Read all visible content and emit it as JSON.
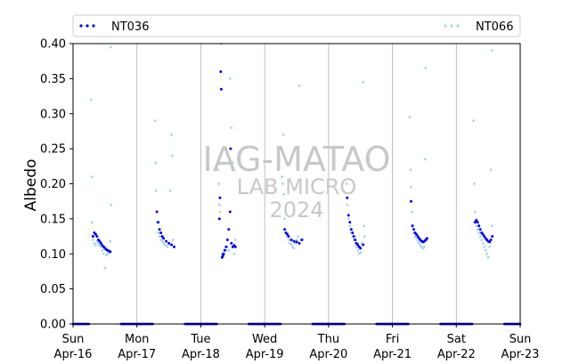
{
  "chart_data": {
    "type": "scatter",
    "xlabel": "",
    "ylabel": "Albedo",
    "ylim": [
      0,
      0.4
    ],
    "yticks": [
      "0.00",
      "0.05",
      "0.10",
      "0.15",
      "0.20",
      "0.25",
      "0.30",
      "0.35",
      "0.40"
    ],
    "xlim": [
      "2024-04-16",
      "2024-04-23"
    ],
    "xticks": [
      {
        "day": "Sun",
        "date": "Apr-16"
      },
      {
        "day": "Mon",
        "date": "Apr-17"
      },
      {
        "day": "Tue",
        "date": "Apr-18"
      },
      {
        "day": "Wed",
        "date": "Apr-19"
      },
      {
        "day": "Thu",
        "date": "Apr-20"
      },
      {
        "day": "Fri",
        "date": "Apr-21"
      },
      {
        "day": "Sat",
        "date": "Apr-22"
      },
      {
        "day": "Sun",
        "date": "Apr-23"
      }
    ],
    "day_gridlines": true,
    "legend_position": "top, spanning full width",
    "watermark": {
      "line1": "IAG-MATAO",
      "line2": "LAB MICRO",
      "line3": "2024"
    },
    "series": [
      {
        "name": "NT036",
        "color": "#0000ee",
        "marker": "dot",
        "daily_profiles": [
          {
            "date": "2024-04-16",
            "points": [
              [
                7.5,
                0.125
              ],
              [
                8.0,
                0.13
              ],
              [
                8.5,
                0.128
              ],
              [
                9.0,
                0.125
              ],
              [
                9.5,
                0.12
              ],
              [
                10.0,
                0.118
              ],
              [
                10.5,
                0.115
              ],
              [
                11.0,
                0.112
              ],
              [
                11.5,
                0.11
              ],
              [
                12.0,
                0.108
              ],
              [
                12.5,
                0.106
              ],
              [
                13.0,
                0.105
              ],
              [
                13.5,
                0.104
              ],
              [
                14.0,
                0.103
              ]
            ]
          },
          {
            "date": "2024-04-17",
            "points": [
              [
                7.5,
                0.16
              ],
              [
                8.0,
                0.145
              ],
              [
                8.5,
                0.135
              ],
              [
                9.0,
                0.13
              ],
              [
                9.5,
                0.125
              ],
              [
                10.0,
                0.122
              ],
              [
                11.0,
                0.118
              ],
              [
                12.0,
                0.115
              ],
              [
                13.0,
                0.113
              ],
              [
                14.0,
                0.11
              ]
            ]
          },
          {
            "date": "2024-04-18",
            "points": [
              [
                7.0,
                0.15
              ],
              [
                7.2,
                0.18
              ],
              [
                7.5,
                0.36
              ],
              [
                7.7,
                0.335
              ],
              [
                8.0,
                0.095
              ],
              [
                8.3,
                0.097
              ],
              [
                8.5,
                0.1
              ],
              [
                9.0,
                0.105
              ],
              [
                9.5,
                0.11
              ],
              [
                10.0,
                0.12
              ],
              [
                10.5,
                0.135
              ],
              [
                11.0,
                0.16
              ],
              [
                11.2,
                0.25
              ],
              [
                11.5,
                0.115
              ],
              [
                12.0,
                0.11
              ],
              [
                12.5,
                0.112
              ],
              [
                13.0,
                0.11
              ]
            ]
          },
          {
            "date": "2024-04-19",
            "points": [
              [
                7.5,
                0.135
              ],
              [
                8.0,
                0.13
              ],
              [
                8.5,
                0.128
              ],
              [
                9.0,
                0.125
              ],
              [
                10.0,
                0.12
              ],
              [
                11.0,
                0.118
              ],
              [
                12.0,
                0.117
              ],
              [
                13.0,
                0.115
              ],
              [
                14.0,
                0.12
              ]
            ]
          },
          {
            "date": "2024-04-20",
            "points": [
              [
                7.0,
                0.18
              ],
              [
                7.5,
                0.155
              ],
              [
                8.0,
                0.145
              ],
              [
                8.5,
                0.135
              ],
              [
                9.0,
                0.13
              ],
              [
                9.5,
                0.125
              ],
              [
                10.0,
                0.12
              ],
              [
                10.5,
                0.115
              ],
              [
                11.0,
                0.113
              ],
              [
                11.5,
                0.11
              ],
              [
                12.0,
                0.108
              ],
              [
                13.0,
                0.113
              ]
            ]
          },
          {
            "date": "2024-04-21",
            "points": [
              [
                7.0,
                0.175
              ],
              [
                7.5,
                0.14
              ],
              [
                8.0,
                0.135
              ],
              [
                8.5,
                0.13
              ],
              [
                9.0,
                0.128
              ],
              [
                9.5,
                0.125
              ],
              [
                10.0,
                0.122
              ],
              [
                10.5,
                0.12
              ],
              [
                11.0,
                0.118
              ],
              [
                11.5,
                0.117
              ],
              [
                12.0,
                0.118
              ],
              [
                12.5,
                0.12
              ],
              [
                13.0,
                0.122
              ]
            ]
          },
          {
            "date": "2024-04-22",
            "points": [
              [
                7.0,
                0.145
              ],
              [
                7.5,
                0.148
              ],
              [
                8.0,
                0.145
              ],
              [
                8.5,
                0.14
              ],
              [
                9.0,
                0.135
              ],
              [
                9.5,
                0.13
              ],
              [
                10.0,
                0.128
              ],
              [
                10.5,
                0.125
              ],
              [
                11.0,
                0.122
              ],
              [
                11.5,
                0.12
              ],
              [
                12.0,
                0.118
              ],
              [
                12.5,
                0.117
              ],
              [
                13.0,
                0.12
              ],
              [
                13.5,
                0.125
              ]
            ]
          }
        ]
      },
      {
        "name": "NT066",
        "color": "#a6d8ea",
        "marker": "dot",
        "daily_profiles": [
          {
            "date": "2024-04-16",
            "points": [
              [
                6.8,
                0.32
              ],
              [
                7.0,
                0.21
              ],
              [
                7.2,
                0.145
              ],
              [
                7.5,
                0.12
              ],
              [
                8.0,
                0.115
              ],
              [
                8.5,
                0.112
              ],
              [
                9.0,
                0.118
              ],
              [
                9.5,
                0.115
              ],
              [
                10.0,
                0.112
              ],
              [
                10.5,
                0.11
              ],
              [
                11.0,
                0.105
              ],
              [
                11.5,
                0.1
              ],
              [
                12.0,
                0.08
              ],
              [
                12.5,
                0.098
              ],
              [
                13.0,
                0.1
              ],
              [
                13.5,
                0.102
              ],
              [
                14.0,
                0.118
              ],
              [
                14.2,
                0.395
              ],
              [
                14.3,
                0.17
              ]
            ]
          },
          {
            "date": "2024-04-17",
            "points": [
              [
                6.8,
                0.29
              ],
              [
                7.0,
                0.23
              ],
              [
                7.2,
                0.19
              ],
              [
                7.5,
                0.145
              ],
              [
                8.0,
                0.13
              ],
              [
                8.5,
                0.125
              ],
              [
                9.0,
                0.12
              ],
              [
                9.5,
                0.118
              ],
              [
                10.0,
                0.115
              ],
              [
                10.5,
                0.113
              ],
              [
                11.0,
                0.112
              ],
              [
                11.5,
                0.11
              ],
              [
                12.0,
                0.115
              ],
              [
                12.5,
                0.19
              ],
              [
                13.0,
                0.27
              ],
              [
                13.3,
                0.24
              ],
              [
                13.5,
                0.12
              ]
            ]
          },
          {
            "date": "2024-04-18",
            "points": [
              [
                6.5,
                0.22
              ],
              [
                6.8,
                0.2
              ],
              [
                7.0,
                0.17
              ],
              [
                7.3,
                0.16
              ],
              [
                7.6,
                0.4
              ],
              [
                8.0,
                0.1
              ],
              [
                8.5,
                0.098
              ],
              [
                9.0,
                0.1
              ],
              [
                9.5,
                0.105
              ],
              [
                10.0,
                0.11
              ],
              [
                10.5,
                0.105
              ],
              [
                11.0,
                0.35
              ],
              [
                11.5,
                0.28
              ],
              [
                12.0,
                0.23
              ],
              [
                12.5,
                0.1
              ],
              [
                13.0,
                0.12
              ]
            ]
          },
          {
            "date": "2024-04-19",
            "points": [
              [
                6.5,
                0.21
              ],
              [
                6.8,
                0.2
              ],
              [
                7.0,
                0.27
              ],
              [
                7.2,
                0.185
              ],
              [
                7.5,
                0.15
              ],
              [
                8.0,
                0.13
              ],
              [
                8.5,
                0.125
              ],
              [
                9.0,
                0.12
              ],
              [
                9.5,
                0.115
              ],
              [
                10.0,
                0.113
              ],
              [
                10.5,
                0.11
              ],
              [
                11.0,
                0.108
              ],
              [
                11.5,
                0.115
              ],
              [
                12.0,
                0.12
              ],
              [
                12.5,
                0.125
              ],
              [
                13.0,
                0.34
              ],
              [
                13.5,
                0.12
              ]
            ]
          },
          {
            "date": "2024-04-20",
            "points": [
              [
                6.8,
                0.2
              ],
              [
                7.0,
                0.17
              ],
              [
                7.5,
                0.15
              ],
              [
                8.0,
                0.14
              ],
              [
                8.5,
                0.13
              ],
              [
                9.0,
                0.125
              ],
              [
                9.5,
                0.12
              ],
              [
                10.0,
                0.115
              ],
              [
                10.5,
                0.11
              ],
              [
                11.0,
                0.105
              ],
              [
                11.5,
                0.1
              ],
              [
                12.0,
                0.102
              ],
              [
                12.5,
                0.115
              ],
              [
                13.0,
                0.345
              ],
              [
                13.3,
                0.14
              ],
              [
                13.5,
                0.125
              ]
            ]
          },
          {
            "date": "2024-04-21",
            "points": [
              [
                6.5,
                0.295
              ],
              [
                6.8,
                0.22
              ],
              [
                7.0,
                0.195
              ],
              [
                7.3,
                0.16
              ],
              [
                7.6,
                0.14
              ],
              [
                8.0,
                0.13
              ],
              [
                8.5,
                0.125
              ],
              [
                9.0,
                0.122
              ],
              [
                9.5,
                0.118
              ],
              [
                10.0,
                0.115
              ],
              [
                10.5,
                0.112
              ],
              [
                11.0,
                0.11
              ],
              [
                11.5,
                0.108
              ],
              [
                12.0,
                0.11
              ],
              [
                12.3,
                0.235
              ],
              [
                12.5,
                0.365
              ],
              [
                12.8,
                0.12
              ]
            ]
          },
          {
            "date": "2024-04-22",
            "points": [
              [
                6.5,
                0.29
              ],
              [
                6.8,
                0.2
              ],
              [
                7.0,
                0.16
              ],
              [
                7.5,
                0.14
              ],
              [
                8.0,
                0.135
              ],
              [
                8.5,
                0.13
              ],
              [
                9.0,
                0.125
              ],
              [
                9.5,
                0.12
              ],
              [
                10.0,
                0.115
              ],
              [
                10.5,
                0.11
              ],
              [
                11.0,
                0.105
              ],
              [
                11.5,
                0.1
              ],
              [
                12.0,
                0.095
              ],
              [
                12.5,
                0.11
              ],
              [
                13.0,
                0.22
              ],
              [
                13.3,
                0.39
              ],
              [
                13.5,
                0.14
              ]
            ]
          }
        ]
      }
    ]
  }
}
